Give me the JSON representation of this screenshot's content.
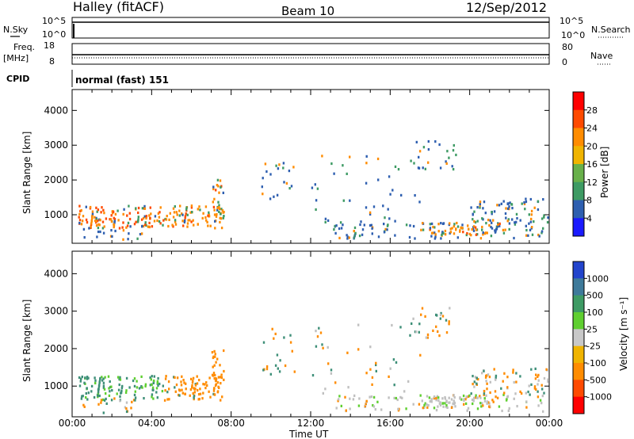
{
  "header": {
    "station": "Halley (fitACF)",
    "beam": "Beam 10",
    "date": "12/Sep/2012"
  },
  "top_panels": {
    "nsky_label": "N.Sky",
    "nsky_ticks": [
      "10^5",
      "10^0"
    ],
    "nsearch_label": "N.Search",
    "nsearch_ticks": [
      "10^5",
      "10^0"
    ],
    "freq_label_1": "Freq.",
    "freq_label_2": "[MHz]",
    "freq_ticks": [
      "18",
      "8"
    ],
    "nave_label": "Nave",
    "nave_ticks": [
      "80",
      "0"
    ],
    "cpid_label": "CPID",
    "cpid_value": "normal (fast) 151"
  },
  "chart_data": [
    {
      "type": "heatmap",
      "name": "power",
      "ylabel": "Slant Range [km]",
      "yticks": [
        1000,
        2000,
        3000,
        4000
      ],
      "ylim": [
        180,
        4600
      ],
      "xlim": [
        0,
        24
      ],
      "colorbar_label": "Power [dB]",
      "colorbar_ticks": [
        "28",
        "24",
        "20",
        "16",
        "12",
        "8",
        "4"
      ],
      "colorbar_colors": [
        "#ff0000",
        "#ff4a00",
        "#ff8c00",
        "#f0b400",
        "#68b04a",
        "#3e9b64",
        "#2e5fb0",
        "#1a1aff"
      ]
    },
    {
      "type": "heatmap",
      "name": "velocity",
      "ylabel": "Slant Range [km]",
      "yticks": [
        1000,
        2000,
        3000,
        4000
      ],
      "ylim": [
        180,
        4600
      ],
      "xlim": [
        0,
        24
      ],
      "xlabel": "Time UT",
      "xticks": [
        "00:00",
        "04:00",
        "08:00",
        "12:00",
        "16:00",
        "20:00",
        "00:00"
      ],
      "colorbar_label": "Velocity [m s⁻¹]",
      "colorbar_ticks": [
        "1000",
        "500",
        "100",
        "25",
        "-25",
        "-100",
        "-500",
        "-1000"
      ],
      "colorbar_colors": [
        "#2244cc",
        "#3e7a9a",
        "#3e9b64",
        "#5fcf30",
        "#c8c8c8",
        "#f0b400",
        "#ff8c00",
        "#ff4a00",
        "#ff0000"
      ]
    }
  ],
  "colors": {
    "power_blue": "#2e5fb0",
    "power_green": "#3e9b64",
    "power_orange": "#ff8c00",
    "power_red": "#ff4a00",
    "vel_teal": "#3e8f78",
    "vel_orange": "#ff8c00",
    "vel_grey": "#c0c0c0",
    "vel_green": "#5fcf30"
  }
}
